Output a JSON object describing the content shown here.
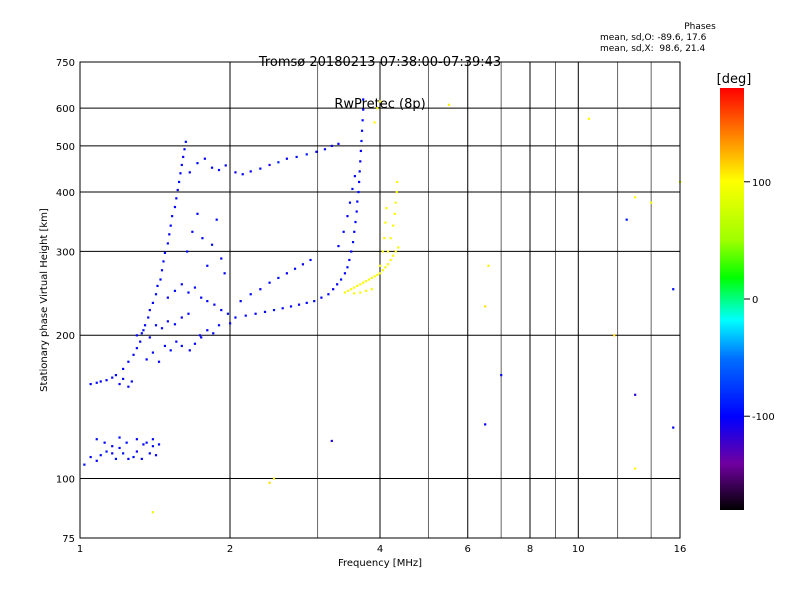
{
  "title": {
    "line1": "Tromsø 20180213 07:38:00-07:39:43",
    "line2": "RwPretec (8p)"
  },
  "stats": {
    "heading": "Phases",
    "line_o": "mean, sd,O: -89.6, 17.6",
    "line_x": "mean, sd,X:  98.6, 21.4"
  },
  "colorbar": {
    "label": "[deg]",
    "range": [
      -180,
      180
    ],
    "ticks": [
      {
        "value": 100,
        "label": "100"
      },
      {
        "value": 0,
        "label": "0"
      },
      {
        "value": -100,
        "label": "-100"
      }
    ]
  },
  "chart_data": {
    "type": "scatter",
    "xlabel": "Frequency [MHz]",
    "ylabel": "Stationary phase Virtual Height [km]",
    "xscale": "log",
    "yscale": "log",
    "xlim": [
      1,
      16
    ],
    "ylim": [
      75,
      750
    ],
    "grid": true,
    "x_ticks": [
      {
        "value": 1,
        "label": "1"
      },
      {
        "value": 2,
        "label": "2"
      },
      {
        "value": 4,
        "label": "4"
      },
      {
        "value": 6,
        "label": "6"
      },
      {
        "value": 8,
        "label": "8"
      },
      {
        "value": 10,
        "label": "10"
      },
      {
        "value": 16,
        "label": "16"
      }
    ],
    "y_ticks": [
      {
        "value": 75,
        "label": "75"
      },
      {
        "value": 100,
        "label": "100"
      },
      {
        "value": 200,
        "label": "200"
      },
      {
        "value": 300,
        "label": "300"
      },
      {
        "value": 400,
        "label": "400"
      },
      {
        "value": 500,
        "label": "500"
      },
      {
        "value": 600,
        "label": "600"
      },
      {
        "value": 750,
        "label": "750"
      }
    ],
    "series": [
      {
        "mode": "O",
        "points": [
          [
            1.02,
            107,
            -95
          ],
          [
            1.05,
            111,
            -100
          ],
          [
            1.08,
            109,
            -102
          ],
          [
            1.1,
            112,
            -98
          ],
          [
            1.13,
            114,
            -90
          ],
          [
            1.16,
            113,
            -104
          ],
          [
            1.18,
            110,
            -96
          ],
          [
            1.2,
            116,
            -100
          ],
          [
            1.22,
            113,
            -93
          ],
          [
            1.25,
            110,
            -101
          ],
          [
            1.28,
            111,
            -97
          ],
          [
            1.3,
            114,
            -105
          ],
          [
            1.33,
            110,
            -99
          ],
          [
            1.36,
            119,
            -92
          ],
          [
            1.38,
            113,
            -100
          ],
          [
            1.4,
            117,
            -96
          ],
          [
            1.42,
            112,
            -103
          ],
          [
            1.44,
            118,
            -98
          ],
          [
            1.08,
            121,
            -94
          ],
          [
            1.12,
            119,
            -102
          ],
          [
            1.16,
            117,
            -100
          ],
          [
            1.2,
            122,
            -97
          ],
          [
            1.24,
            119,
            -95
          ],
          [
            1.3,
            121,
            -101
          ],
          [
            1.34,
            118,
            -99
          ],
          [
            1.4,
            121,
            -96
          ],
          [
            1.05,
            158,
            -100
          ],
          [
            1.08,
            159,
            -96
          ],
          [
            1.1,
            160,
            -102
          ],
          [
            1.13,
            161,
            -99
          ],
          [
            1.16,
            163,
            -95
          ],
          [
            1.18,
            165,
            -100
          ],
          [
            1.2,
            158,
            -104
          ],
          [
            1.22,
            162,
            -98
          ],
          [
            1.25,
            156,
            -101
          ],
          [
            1.27,
            160,
            -97
          ],
          [
            1.22,
            170,
            -100
          ],
          [
            1.25,
            176,
            -98
          ],
          [
            1.28,
            182,
            -102
          ],
          [
            1.3,
            188,
            -96
          ],
          [
            1.32,
            194,
            -100
          ],
          [
            1.33,
            202,
            -95
          ],
          [
            1.35,
            210,
            -101
          ],
          [
            1.37,
            218,
            -97
          ],
          [
            1.38,
            226,
            -103
          ],
          [
            1.4,
            234,
            -99
          ],
          [
            1.42,
            244,
            -94
          ],
          [
            1.43,
            254,
            -100
          ],
          [
            1.45,
            262,
            -98
          ],
          [
            1.46,
            274,
            -102
          ],
          [
            1.47,
            286,
            -96
          ],
          [
            1.48,
            298,
            -100
          ],
          [
            1.5,
            312,
            -97
          ],
          [
            1.51,
            326,
            -103
          ],
          [
            1.52,
            340,
            -99
          ],
          [
            1.53,
            356,
            -95
          ],
          [
            1.55,
            372,
            -100
          ],
          [
            1.56,
            388,
            -98
          ],
          [
            1.57,
            404,
            -102
          ],
          [
            1.58,
            420,
            -96
          ],
          [
            1.59,
            438,
            -100
          ],
          [
            1.6,
            456,
            -97
          ],
          [
            1.61,
            474,
            -103
          ],
          [
            1.62,
            492,
            -99
          ],
          [
            1.63,
            510,
            -95
          ],
          [
            1.3,
            200,
            -100
          ],
          [
            1.34,
            205,
            -96
          ],
          [
            1.38,
            198,
            -102
          ],
          [
            1.42,
            210,
            -99
          ],
          [
            1.46,
            207,
            -95
          ],
          [
            1.5,
            214,
            -101
          ],
          [
            1.55,
            211,
            -97
          ],
          [
            1.6,
            218,
            -103
          ],
          [
            1.65,
            222,
            -99
          ],
          [
            1.36,
            178,
            -100
          ],
          [
            1.4,
            184,
            -96
          ],
          [
            1.44,
            176,
            -102
          ],
          [
            1.48,
            190,
            -98
          ],
          [
            1.52,
            186,
            -95
          ],
          [
            1.56,
            194,
            -101
          ],
          [
            1.6,
            190,
            -97
          ],
          [
            1.66,
            186,
            -100
          ],
          [
            1.7,
            192,
            -98
          ],
          [
            1.74,
            200,
            -102
          ],
          [
            1.5,
            240,
            -100
          ],
          [
            1.55,
            248,
            -96
          ],
          [
            1.6,
            256,
            -102
          ],
          [
            1.65,
            246,
            -98
          ],
          [
            1.7,
            252,
            -95
          ],
          [
            1.75,
            240,
            -101
          ],
          [
            1.8,
            236,
            -97
          ],
          [
            1.86,
            232,
            -103
          ],
          [
            1.92,
            226,
            -99
          ],
          [
            1.98,
            222,
            -95
          ],
          [
            1.64,
            300,
            -100
          ],
          [
            1.68,
            330,
            -96
          ],
          [
            1.72,
            360,
            -102
          ],
          [
            1.76,
            320,
            -98
          ],
          [
            1.8,
            280,
            -95
          ],
          [
            1.84,
            310,
            -101
          ],
          [
            1.88,
            350,
            -97
          ],
          [
            1.92,
            290,
            -103
          ],
          [
            1.95,
            270,
            -99
          ],
          [
            1.66,
            440,
            -100
          ],
          [
            1.72,
            460,
            -96
          ],
          [
            1.78,
            470,
            -102
          ],
          [
            1.84,
            450,
            -98
          ],
          [
            1.9,
            445,
            -95
          ],
          [
            1.96,
            455,
            -101
          ],
          [
            2.05,
            440,
            -105
          ],
          [
            2.12,
            436,
            -98
          ],
          [
            2.2,
            442,
            -100
          ],
          [
            2.3,
            448,
            -96
          ],
          [
            2.4,
            456,
            -110
          ],
          [
            2.5,
            462,
            -85
          ],
          [
            2.6,
            470,
            -102
          ],
          [
            2.72,
            474,
            -95
          ],
          [
            2.85,
            480,
            -88
          ],
          [
            2.98,
            486,
            -100
          ],
          [
            3.1,
            492,
            -97
          ],
          [
            3.2,
            500,
            -103
          ],
          [
            3.3,
            505,
            -99
          ],
          [
            2.05,
            218,
            -100
          ],
          [
            2.15,
            220,
            -96
          ],
          [
            2.25,
            222,
            -102
          ],
          [
            2.35,
            224,
            -98
          ],
          [
            2.45,
            226,
            -95
          ],
          [
            2.55,
            228,
            -101
          ],
          [
            2.65,
            230,
            -97
          ],
          [
            2.75,
            232,
            -103
          ],
          [
            2.85,
            234,
            -99
          ],
          [
            2.95,
            236,
            -95
          ],
          [
            3.05,
            240,
            -100
          ],
          [
            3.15,
            244,
            -96
          ],
          [
            3.22,
            250,
            -102
          ],
          [
            3.28,
            256,
            -98
          ],
          [
            3.34,
            262,
            -95
          ],
          [
            3.4,
            270,
            -101
          ],
          [
            3.44,
            278,
            -97
          ],
          [
            3.47,
            288,
            -103
          ],
          [
            3.5,
            300,
            -99
          ],
          [
            3.53,
            314,
            -95
          ],
          [
            3.55,
            330,
            -100
          ],
          [
            3.57,
            346,
            -96
          ],
          [
            3.59,
            364,
            -102
          ],
          [
            3.6,
            382,
            -98
          ],
          [
            3.62,
            400,
            -95
          ],
          [
            3.63,
            420,
            -101
          ],
          [
            3.64,
            442,
            -97
          ],
          [
            3.65,
            464,
            -103
          ],
          [
            3.66,
            488,
            -99
          ],
          [
            3.67,
            512,
            -95
          ],
          [
            3.68,
            538,
            -100
          ],
          [
            3.69,
            566,
            -96
          ],
          [
            3.7,
            596,
            -102
          ],
          [
            3.7,
            626,
            -98
          ],
          [
            2.1,
            236,
            -100
          ],
          [
            2.2,
            244,
            -96
          ],
          [
            2.3,
            250,
            -102
          ],
          [
            2.4,
            258,
            -98
          ],
          [
            2.5,
            264,
            -95
          ],
          [
            2.6,
            270,
            -101
          ],
          [
            2.7,
            276,
            -97
          ],
          [
            2.8,
            282,
            -103
          ],
          [
            2.9,
            288,
            -99
          ],
          [
            3.3,
            308,
            -100
          ],
          [
            3.38,
            330,
            -96
          ],
          [
            3.44,
            356,
            -102
          ],
          [
            3.48,
            380,
            -98
          ],
          [
            3.52,
            406,
            -95
          ],
          [
            3.56,
            432,
            -101
          ],
          [
            1.8,
            205,
            -100
          ],
          [
            1.9,
            210,
            -96
          ],
          [
            2.0,
            212,
            -102
          ],
          [
            1.75,
            198,
            -98
          ],
          [
            1.85,
            202,
            -95
          ],
          [
            3.2,
            120,
            -110
          ],
          [
            6.5,
            130,
            -100
          ],
          [
            7.0,
            165,
            -95
          ],
          [
            13.0,
            150,
            -115
          ],
          [
            15.5,
            128,
            -100
          ],
          [
            12.5,
            350,
            -90
          ],
          [
            15.5,
            250,
            -95
          ]
        ]
      },
      {
        "mode": "X",
        "points": [
          [
            3.4,
            246,
            95
          ],
          [
            3.45,
            248,
            100
          ],
          [
            3.5,
            250,
            98
          ],
          [
            3.55,
            252,
            102
          ],
          [
            3.6,
            254,
            96
          ],
          [
            3.65,
            256,
            100
          ],
          [
            3.7,
            258,
            97
          ],
          [
            3.75,
            260,
            103
          ],
          [
            3.8,
            262,
            99
          ],
          [
            3.85,
            264,
            95
          ],
          [
            3.9,
            266,
            100
          ],
          [
            3.95,
            268,
            96
          ],
          [
            4.0,
            270,
            102
          ],
          [
            4.05,
            274,
            98
          ],
          [
            4.1,
            278,
            95
          ],
          [
            4.15,
            282,
            101
          ],
          [
            4.2,
            288,
            97
          ],
          [
            4.25,
            294,
            103
          ],
          [
            4.3,
            300,
            99
          ],
          [
            4.35,
            306,
            95
          ],
          [
            4.15,
            300,
            100
          ],
          [
            4.2,
            320,
            96
          ],
          [
            4.25,
            340,
            102
          ],
          [
            4.28,
            360,
            98
          ],
          [
            4.3,
            380,
            95
          ],
          [
            4.32,
            400,
            101
          ],
          [
            4.33,
            420,
            97
          ],
          [
            4.0,
            280,
            100
          ],
          [
            4.05,
            300,
            96
          ],
          [
            4.08,
            320,
            102
          ],
          [
            4.1,
            345,
            98
          ],
          [
            4.12,
            370,
            95
          ],
          [
            3.9,
            560,
            100
          ],
          [
            3.95,
            600,
            96
          ],
          [
            4.0,
            620,
            102
          ],
          [
            3.55,
            245,
            100
          ],
          [
            3.65,
            246,
            96
          ],
          [
            3.75,
            248,
            102
          ],
          [
            3.85,
            250,
            98
          ],
          [
            2.4,
            98,
            110
          ],
          [
            2.45,
            100,
            105
          ],
          [
            1.4,
            85,
            90
          ],
          [
            5.5,
            610,
            105
          ],
          [
            10.5,
            570,
            100
          ],
          [
            11.8,
            200,
            110
          ],
          [
            13.0,
            390,
            100
          ],
          [
            13.0,
            105,
            100
          ],
          [
            14.0,
            380,
            95
          ],
          [
            16.0,
            420,
            90
          ],
          [
            6.5,
            230,
            110
          ],
          [
            6.6,
            280,
            105
          ]
        ]
      }
    ]
  }
}
